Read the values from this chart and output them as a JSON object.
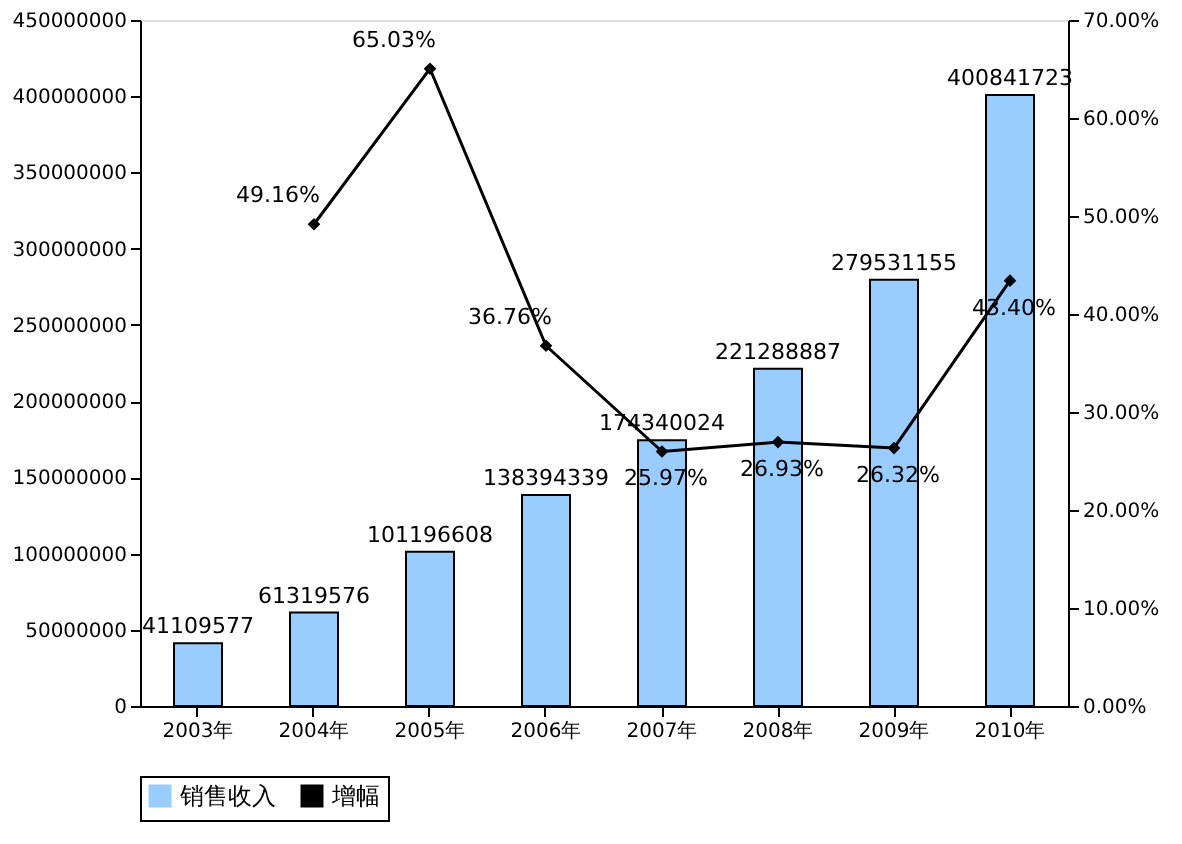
{
  "chart_data": {
    "type": "bar",
    "categories": [
      "2003年",
      "2004年",
      "2005年",
      "2006年",
      "2007年",
      "2008年",
      "2009年",
      "2010年"
    ],
    "series": [
      {
        "name": "销售收入",
        "color": "#99ccff",
        "values": [
          41109577,
          61319576,
          101196608,
          138394339,
          174340024,
          221288887,
          279531155,
          400841723
        ],
        "value_labels": [
          "41109577",
          "61319576",
          "101196608",
          "138394339",
          "174340024",
          "221288887",
          "279531155",
          "400841723"
        ]
      },
      {
        "name": "增幅",
        "type": "line",
        "axis": "y2",
        "color": "#000000",
        "marker": "diamond",
        "values": [
          null,
          49.16,
          65.03,
          36.76,
          25.97,
          26.93,
          26.32,
          43.4
        ],
        "value_labels": [
          null,
          "49.16%",
          "65.03%",
          "36.76%",
          "25.97%",
          "26.93%",
          "26.32%",
          "43.40%"
        ]
      }
    ],
    "ylim": [
      0,
      450000000
    ],
    "yticks": [
      0,
      50000000,
      100000000,
      150000000,
      200000000,
      250000000,
      300000000,
      350000000,
      400000000,
      450000000
    ],
    "y2lim": [
      0,
      70
    ],
    "y2ticks": [
      {
        "value": 0,
        "label": "0.00%"
      },
      {
        "value": 10,
        "label": "10.00%"
      },
      {
        "value": 20,
        "label": "20.00%"
      },
      {
        "value": 30,
        "label": "30.00%"
      },
      {
        "value": 40,
        "label": "40.00%"
      },
      {
        "value": 50,
        "label": "50.00%"
      },
      {
        "value": 60,
        "label": "60.00%"
      },
      {
        "value": 70,
        "label": "70.00%"
      }
    ],
    "grid": false,
    "legend": "bottom"
  }
}
